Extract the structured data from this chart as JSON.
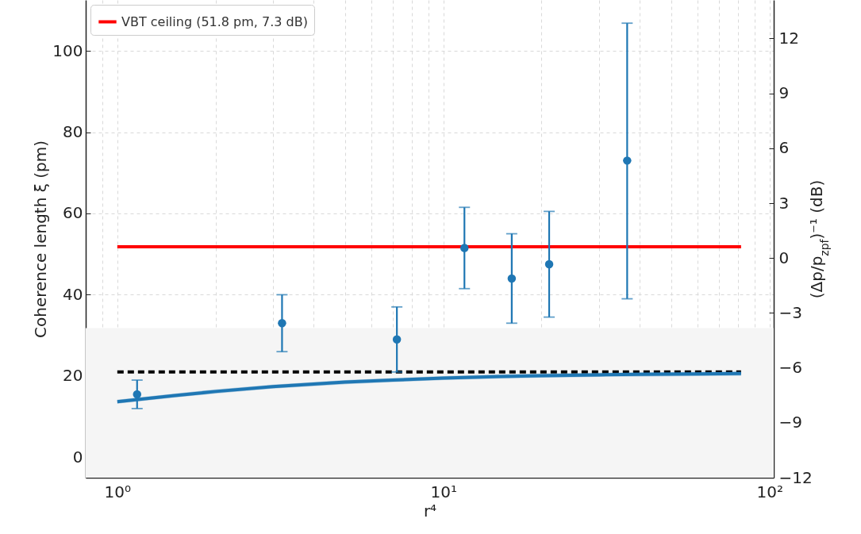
{
  "chart_data": {
    "type": "scatter",
    "xlabel": "r⁴",
    "ylabel": "Coherence length ξ (pm)",
    "y2label": "(Δp/p$_{zpf}$)⁻¹ (dB)",
    "log": "x",
    "grid": true,
    "legend": "top left",
    "xlim": [
      0.8,
      103
    ],
    "ylim": [
      -5,
      112.5
    ],
    "y2lim": [
      -12,
      14.1
    ],
    "xticks": [
      {
        "value": 0.9,
        "label": null
      },
      {
        "value": 1,
        "label": "10⁰"
      },
      {
        "value": 2,
        "label": null
      },
      {
        "value": 3,
        "label": null
      },
      {
        "value": 4,
        "label": null
      },
      {
        "value": 5,
        "label": null
      },
      {
        "value": 6,
        "label": null
      },
      {
        "value": 7,
        "label": null
      },
      {
        "value": 8,
        "label": null
      },
      {
        "value": 9,
        "label": null
      },
      {
        "value": 10,
        "label": "10¹"
      },
      {
        "value": 20,
        "label": null
      },
      {
        "value": 30,
        "label": null
      },
      {
        "value": 40,
        "label": null
      },
      {
        "value": 50,
        "label": null
      },
      {
        "value": 60,
        "label": null
      },
      {
        "value": 70,
        "label": null
      },
      {
        "value": 80,
        "label": null
      },
      {
        "value": 90,
        "label": null
      },
      {
        "value": 100,
        "label": "10²"
      }
    ],
    "yticks": [
      0,
      20,
      40,
      60,
      80,
      100
    ],
    "y2ticks": [
      12,
      9,
      6,
      3,
      0,
      -3,
      -6,
      -9,
      -12
    ],
    "bands": [
      {
        "axis": "y",
        "from": -5,
        "to": 31.8,
        "color": "#f5f5f5"
      }
    ],
    "series": [
      {
        "type": "line",
        "name": "VBT ceiling (51.8 pm, 7.3 dB)",
        "color": "#ff0000",
        "x": [
          1,
          81.8
        ],
        "values": [
          51.8,
          51.8
        ]
      },
      {
        "type": "line",
        "color": "#000000",
        "line_style": "dashed",
        "x": [
          1,
          81.8
        ],
        "values": [
          21,
          21
        ]
      },
      {
        "type": "line",
        "color": "#1f77b4",
        "x": [
          1,
          1.5,
          2,
          3,
          5,
          7,
          10,
          15,
          20,
          30,
          40,
          60,
          81.8
        ],
        "values": [
          13.7,
          15.2,
          16.2,
          17.4,
          18.5,
          19.0,
          19.5,
          19.9,
          20.1,
          20.3,
          20.4,
          20.5,
          20.6
        ],
        "lower": [
          13.2,
          14.7,
          15.7,
          16.9,
          18.0,
          18.5,
          19.0,
          19.4,
          19.6,
          19.8,
          19.9,
          20.0,
          20.1
        ],
        "upper": [
          14.2,
          15.7,
          16.7,
          17.9,
          19.0,
          19.5,
          20.0,
          20.4,
          20.6,
          20.8,
          20.9,
          21.0,
          21.1
        ]
      },
      {
        "color": "#1f77b4",
        "marker": "circle",
        "x": [
          1.15,
          3.2,
          7.2,
          11.6,
          16.2,
          21.1,
          36.6
        ],
        "values": [
          15.5,
          33,
          29,
          51.5,
          44,
          47.5,
          73
        ],
        "errors": [
          [
            12,
            19
          ],
          [
            26,
            40
          ],
          [
            21,
            37
          ],
          [
            41.5,
            61.5
          ],
          [
            33,
            55
          ],
          [
            34.5,
            60.5
          ],
          [
            39,
            106.8
          ]
        ]
      }
    ]
  }
}
